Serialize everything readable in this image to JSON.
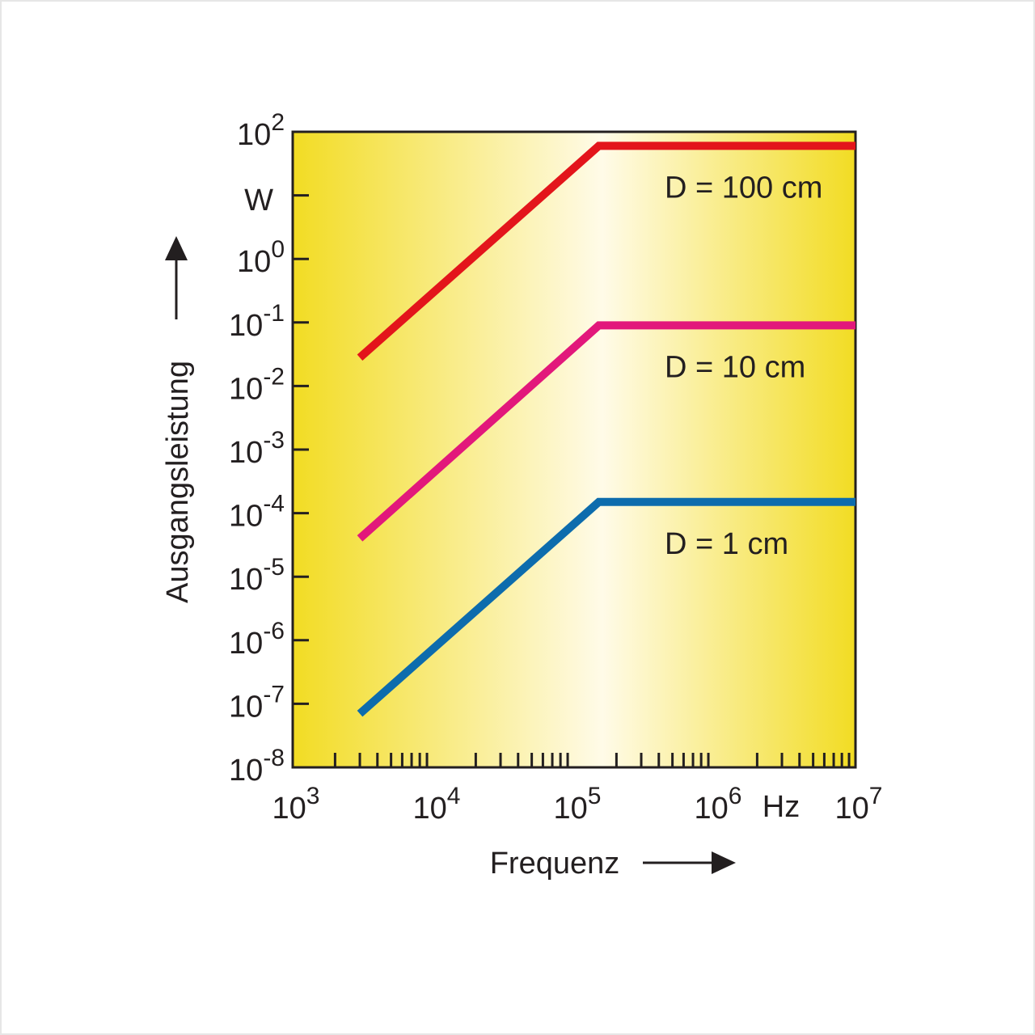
{
  "chart_data": {
    "type": "line",
    "x_scale": "log",
    "y_scale": "log",
    "xlim": [
      1000,
      10000000
    ],
    "ylim": [
      1e-08,
      100
    ],
    "xlabel": "Frequenz",
    "ylabel": "Ausgangsleistung",
    "x_unit": "Hz",
    "y_unit": "W",
    "x_ticks": [
      {
        "value": 1000,
        "base": "10",
        "exp": "3"
      },
      {
        "value": 10000,
        "base": "10",
        "exp": "4"
      },
      {
        "value": 100000,
        "base": "10",
        "exp": "5"
      },
      {
        "value": 1000000,
        "base": "10",
        "exp": "6"
      },
      {
        "value": 10000000,
        "base": "10",
        "exp": "7"
      }
    ],
    "y_ticks": [
      {
        "value": 100,
        "base": "10",
        "exp": "2"
      },
      {
        "value": 1,
        "base": "10",
        "exp": "0"
      },
      {
        "value": 0.1,
        "base": "10",
        "exp": "-1"
      },
      {
        "value": 0.01,
        "base": "10",
        "exp": "-2"
      },
      {
        "value": 0.001,
        "base": "10",
        "exp": "-3"
      },
      {
        "value": 0.0001,
        "base": "10",
        "exp": "-4"
      },
      {
        "value": 1e-05,
        "base": "10",
        "exp": "-5"
      },
      {
        "value": 1e-06,
        "base": "10",
        "exp": "-6"
      },
      {
        "value": 1e-07,
        "base": "10",
        "exp": "-7"
      },
      {
        "value": 1e-08,
        "base": "10",
        "exp": "-8"
      }
    ],
    "grid": false,
    "background": "yellow gradient, light in the middle",
    "series": [
      {
        "name": "D = 100 cm",
        "color": "#e3151b",
        "x": [
          3000,
          150000,
          10000000
        ],
        "y": [
          0.028,
          60,
          60
        ]
      },
      {
        "name": "D = 10 cm",
        "color": "#e2187b",
        "x": [
          3000,
          150000,
          10000000
        ],
        "y": [
          4e-05,
          0.09,
          0.09
        ]
      },
      {
        "name": "D = 1 cm",
        "color": "#0d6cad",
        "x": [
          3000,
          150000,
          10000000
        ],
        "y": [
          7e-08,
          0.00015,
          0.00015
        ]
      }
    ]
  }
}
